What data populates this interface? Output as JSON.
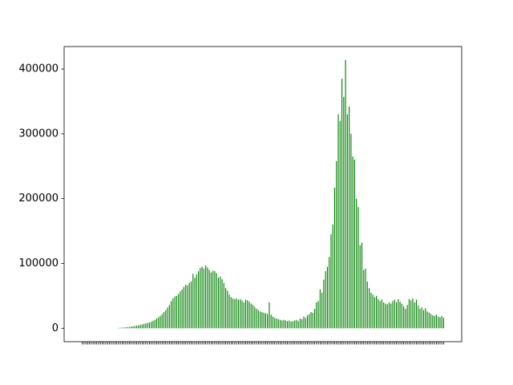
{
  "chart_data": {
    "type": "bar",
    "color": "#008000",
    "categories": [
      null,
      null,
      null,
      null,
      null,
      null,
      null,
      null,
      null,
      null,
      null,
      null,
      null,
      null,
      null,
      null,
      null,
      null,
      null,
      null,
      null,
      null,
      null,
      null,
      null,
      null,
      null,
      null,
      null,
      null,
      null,
      null,
      null,
      null,
      null,
      null,
      null,
      null,
      null,
      null,
      null,
      null,
      null,
      null,
      null,
      null,
      null,
      null,
      null,
      null,
      null,
      null,
      null,
      null,
      null,
      null,
      null,
      null,
      null,
      null,
      null,
      null,
      null,
      null,
      null,
      null,
      null,
      null,
      null,
      null,
      null,
      null,
      null,
      null,
      null,
      null,
      null,
      null,
      null,
      null,
      null,
      null,
      null,
      null,
      null,
      null,
      null,
      null,
      null,
      null,
      null,
      null,
      null,
      null,
      null,
      null,
      null,
      null,
      null,
      null,
      null,
      null,
      null,
      null,
      null,
      null,
      null,
      null,
      null,
      null,
      null,
      null,
      null,
      null,
      null,
      null,
      null,
      null,
      null,
      null,
      null,
      null,
      null,
      null,
      null,
      null,
      null,
      null,
      null,
      null,
      null,
      null,
      null,
      null,
      null,
      null,
      null,
      null,
      null,
      null,
      null,
      null,
      null,
      null,
      null,
      null,
      null,
      null,
      null,
      null,
      null,
      null,
      null,
      null,
      null,
      null,
      null,
      null,
      null,
      null,
      null,
      null,
      null,
      null,
      null,
      null,
      null,
      null,
      null,
      null,
      null,
      null,
      null,
      null,
      null,
      null,
      null,
      null,
      null,
      null,
      null,
      null,
      null,
      null,
      null,
      null,
      null,
      null,
      null,
      null,
      null,
      null,
      null,
      null,
      null,
      null,
      null,
      null,
      null,
      null
    ],
    "values": [
      0,
      0,
      0,
      0,
      0,
      0,
      0,
      0,
      0,
      0,
      0,
      0,
      0,
      0,
      0,
      0,
      0,
      0,
      0,
      0,
      500,
      800,
      1000,
      1200,
      1500,
      1800,
      2200,
      2600,
      3000,
      3500,
      4000,
      4500,
      5200,
      6000,
      6800,
      7500,
      8200,
      9000,
      10000,
      11500,
      13000,
      15000,
      17000,
      19000,
      22000,
      25000,
      28000,
      32000,
      36000,
      42000,
      46000,
      49000,
      50000,
      53000,
      57000,
      60000,
      64000,
      67000,
      66000,
      70000,
      72000,
      84000,
      78000,
      83000,
      88000,
      93000,
      95000,
      92000,
      97000,
      94000,
      90000,
      86000,
      89000,
      88000,
      85000,
      78000,
      80000,
      76000,
      70000,
      62000,
      58000,
      52000,
      48000,
      46000,
      45000,
      46000,
      44000,
      45000,
      43000,
      40000,
      44000,
      43000,
      41000,
      38000,
      36000,
      33000,
      30000,
      28000,
      26000,
      25000,
      24000,
      23000,
      22000,
      40000,
      21000,
      18000,
      16000,
      15000,
      14000,
      13000,
      12000,
      13000,
      12000,
      11000,
      12000,
      10000,
      11000,
      12000,
      13000,
      11000,
      15000,
      14000,
      18000,
      16000,
      20000,
      22000,
      25000,
      24000,
      30000,
      40000,
      42000,
      60000,
      55000,
      75000,
      88000,
      95000,
      110000,
      145000,
      160000,
      217000,
      258000,
      330000,
      320000,
      385000,
      357000,
      414000,
      330000,
      342000,
      300000,
      265000,
      260000,
      200000,
      187000,
      128000,
      132000,
      90000,
      92000,
      72000,
      62000,
      55000,
      52000,
      48000,
      50000,
      45000,
      42000,
      44000,
      40000,
      38000,
      37000,
      40000,
      38000,
      42000,
      44000,
      40000,
      45000,
      41000,
      38000,
      34000,
      30000,
      36000,
      45000,
      43000,
      46000,
      40000,
      44000,
      35000,
      30000,
      32000,
      28000,
      31000,
      26000,
      24000,
      22000,
      20000,
      19000,
      21000,
      18000,
      17000,
      19000,
      16000
    ],
    "ylim": [
      -20700,
      434700
    ],
    "yticks": [
      0,
      100000,
      200000,
      300000,
      400000
    ]
  }
}
